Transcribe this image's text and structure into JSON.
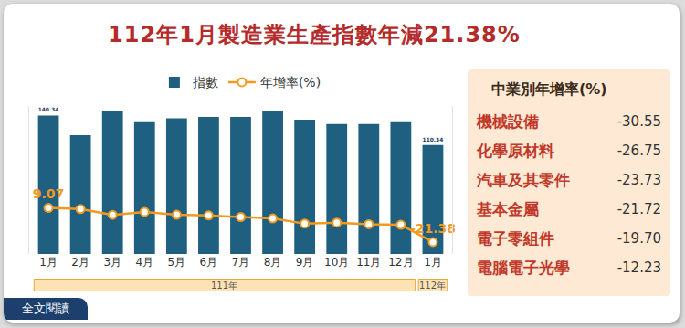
{
  "chart_data": {
    "type": "bar",
    "title": "112年1月製造業生產指數年減21.38%",
    "categories": [
      "1月",
      "2月",
      "3月",
      "4月",
      "5月",
      "6月",
      "7月",
      "8月",
      "9月",
      "10月",
      "11月",
      "12月",
      "1月"
    ],
    "series": [
      {
        "name": "指數",
        "type": "bar",
        "color": "#1f5f80",
        "values": [
          140.34,
          120.3,
          144.6,
          134.6,
          137.4,
          138.8,
          138.8,
          144.6,
          136.0,
          131.7,
          131.7,
          134.6,
          110.34
        ],
        "value_labels": [
          "140.34",
          null,
          null,
          null,
          null,
          null,
          null,
          null,
          null,
          null,
          null,
          null,
          "110.34"
        ]
      },
      {
        "name": "年增率(%)",
        "type": "line",
        "axis": "y2",
        "color": "#f39a1e",
        "marker": "circle",
        "values": [
          9.07,
          8.1,
          2.9,
          5.5,
          3.0,
          2.4,
          1.0,
          -0.3,
          -5.0,
          -4.0,
          -5.5,
          -6.0,
          -21.38
        ],
        "value_labels": [
          "9.07",
          null,
          null,
          null,
          null,
          null,
          null,
          null,
          null,
          null,
          null,
          null,
          "-21.38"
        ]
      }
    ],
    "ylim": [
      0,
      150
    ],
    "y2lim": [
      -32,
      100
    ],
    "tick_labels": "x",
    "grid": false,
    "legend": "top",
    "year_groups": [
      {
        "label": "111年",
        "count": 12
      },
      {
        "label": "112年",
        "count": 1
      }
    ]
  },
  "panel": {
    "title": "中業別年增率(%)",
    "rows": [
      {
        "label": "機械設備",
        "value": -30.55
      },
      {
        "label": "化學原材料",
        "value": -26.75
      },
      {
        "label": "汽車及其零件",
        "value": -23.73
      },
      {
        "label": "基本金屬",
        "value": -21.72
      },
      {
        "label": "電子零組件",
        "value": -19.7
      },
      {
        "label": "電腦電子光學",
        "value": -12.23
      }
    ]
  },
  "footer": {
    "button": "全文閱讀"
  }
}
